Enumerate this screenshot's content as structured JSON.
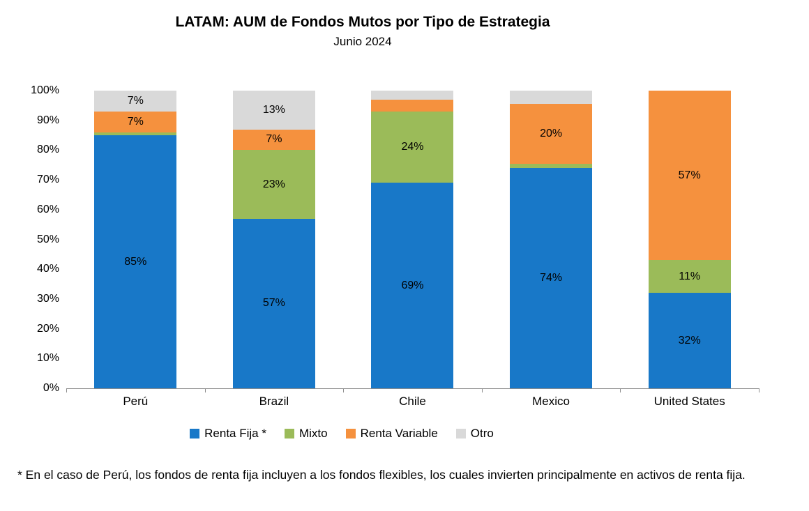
{
  "title": "LATAM: AUM de Fondos Mutos por Tipo de Estrategia",
  "subtitle": "Junio 2024",
  "footnote": "* En el caso de Perú, los fondos de renta fija incluyen a los fondos flexibles, los cuales invierten principalmente en activos de renta fija.",
  "chart_data": {
    "type": "bar",
    "stacked": true,
    "title": "LATAM: AUM de Fondos Mutos por Tipo de Estrategia",
    "subtitle": "Junio 2024",
    "categories": [
      "Perú",
      "Brazil",
      "Chile",
      "Mexico",
      "United States"
    ],
    "series": [
      {
        "name": "Renta Fija *",
        "color": "#1878C8",
        "values": [
          85,
          57,
          69,
          74,
          32
        ],
        "labels": [
          "85%",
          "57%",
          "69%",
          "74%",
          "32%"
        ]
      },
      {
        "name": "Mixto",
        "color": "#9BBB59",
        "values": [
          1,
          23,
          24,
          1.5,
          11
        ],
        "labels": [
          "",
          "23%",
          "24%",
          "",
          "11%"
        ]
      },
      {
        "name": "Renta Variable",
        "color": "#F5913E",
        "values": [
          7,
          7,
          4,
          20,
          57
        ],
        "labels": [
          "7%",
          "7%",
          "",
          "20%",
          "57%"
        ]
      },
      {
        "name": "Otro",
        "color": "#D9D9D9",
        "values": [
          7,
          13,
          3,
          4.5,
          0
        ],
        "labels": [
          "7%",
          "13%",
          "",
          "",
          ""
        ]
      }
    ],
    "ylabel": "",
    "xlabel": "",
    "ylim": [
      0,
      100
    ],
    "yticks": [
      "0%",
      "10%",
      "20%",
      "30%",
      "40%",
      "50%",
      "60%",
      "70%",
      "80%",
      "90%",
      "100%"
    ],
    "grid": false,
    "legend_position": "bottom"
  }
}
